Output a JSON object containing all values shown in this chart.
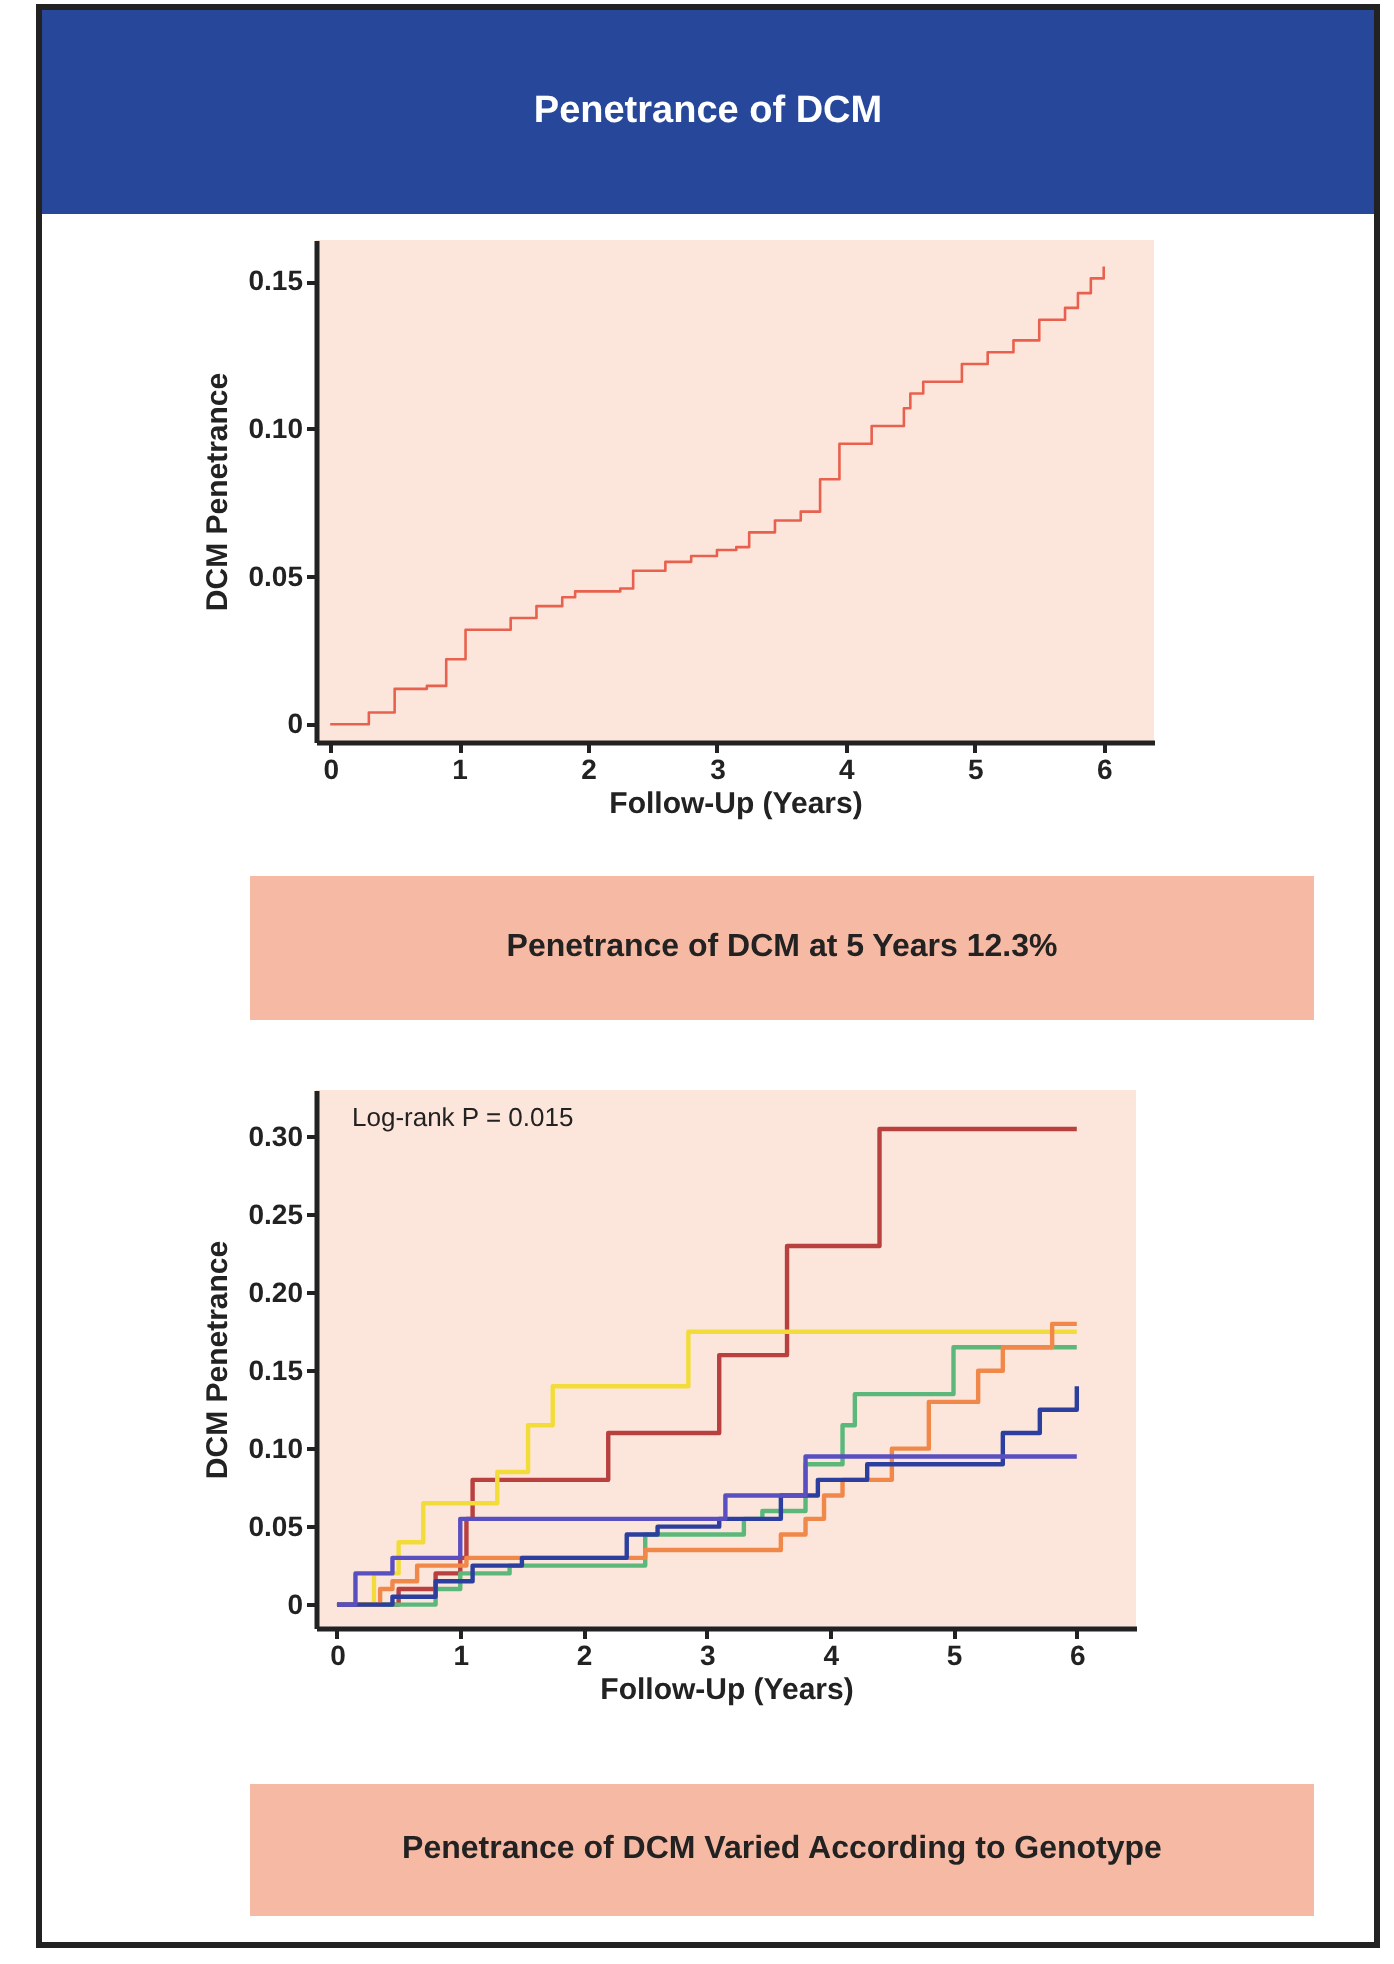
{
  "chart_data": [
    {
      "type": "step",
      "title": "Penetrance of DCM",
      "xlabel": "Follow-Up (Years)",
      "ylabel": "DCM Penetrance",
      "annotations": [
        "Penetrance of DCM at 5 Years 12.3%"
      ],
      "xlim": [
        -0.11,
        6.39
      ],
      "ylim": [
        -0.006,
        0.164
      ],
      "xticks": [
        0,
        1,
        2,
        3,
        4,
        5,
        6
      ],
      "yticks": [
        0,
        0.05,
        {
          "value": 0.1,
          "label": "0.10"
        },
        0.15
      ],
      "series": [
        {
          "color": "#e8614e",
          "x": [
            0,
            0.1,
            0.3,
            0.5,
            0.75,
            0.9,
            1.05,
            1.4,
            1.6,
            1.8,
            1.9,
            2.25,
            2.35,
            2.6,
            2.8,
            3.0,
            3.15,
            3.25,
            3.45,
            3.65,
            3.8,
            3.95,
            4.2,
            4.45,
            4.5,
            4.6,
            4.85,
            4.9,
            5.1,
            5.3,
            5.5,
            5.7,
            5.8,
            5.9,
            6.0
          ],
          "values": [
            0,
            0,
            0.004,
            0.012,
            0.013,
            0.022,
            0.032,
            0.036,
            0.04,
            0.043,
            0.045,
            0.046,
            0.052,
            0.055,
            0.057,
            0.059,
            0.06,
            0.065,
            0.069,
            0.072,
            0.083,
            0.095,
            0.101,
            0.107,
            0.112,
            0.116,
            0.116,
            0.122,
            0.126,
            0.13,
            0.137,
            0.141,
            0.146,
            0.151,
            0.155
          ]
        }
      ]
    },
    {
      "type": "step",
      "xlabel": "Follow-Up (Years)",
      "ylabel": "DCM Penetrance",
      "annotations": [
        "Log-rank P = 0.015",
        "Penetrance of DCM Varied According to Genotype"
      ],
      "xlim": [
        -0.17,
        6.48
      ],
      "ylim": [
        -0.015,
        0.33
      ],
      "xticks": [
        0,
        1,
        2,
        3,
        4,
        5,
        6
      ],
      "yticks": [
        0,
        0.05,
        {
          "value": 0.1,
          "label": "0.10"
        },
        0.15,
        {
          "value": 0.2,
          "label": "0.20"
        },
        0.25,
        {
          "value": 0.3,
          "label": "0.30"
        }
      ],
      "series": [
        {
          "color": "#b8403f",
          "x": [
            0,
            0.5,
            0.8,
            1.0,
            1.05,
            1.1,
            2.2,
            3.1,
            3.65,
            4.4,
            6.0
          ],
          "values": [
            0,
            0.01,
            0.02,
            0.03,
            0.055,
            0.08,
            0.11,
            0.16,
            0.23,
            0.305,
            0.305
          ]
        },
        {
          "color": "#f2dc3a",
          "x": [
            0,
            0.3,
            0.5,
            0.7,
            1.3,
            1.55,
            1.75,
            2.85,
            6.0
          ],
          "values": [
            0,
            0.02,
            0.04,
            0.065,
            0.085,
            0.115,
            0.14,
            0.175,
            0.175
          ]
        },
        {
          "color": "#5cb87a",
          "x": [
            0,
            0.8,
            1.0,
            1.4,
            2.5,
            3.3,
            3.45,
            3.8,
            4.1,
            4.2,
            5.0,
            6.0
          ],
          "values": [
            0,
            0.01,
            0.02,
            0.025,
            0.045,
            0.055,
            0.06,
            0.09,
            0.115,
            0.135,
            0.165,
            0.165
          ]
        },
        {
          "color": "#f0884a",
          "x": [
            0,
            0.35,
            0.45,
            0.65,
            1.05,
            2.5,
            3.6,
            3.8,
            3.95,
            4.1,
            4.5,
            4.8,
            5.2,
            5.4,
            5.8,
            6.0
          ],
          "values": [
            0,
            0.01,
            0.015,
            0.025,
            0.03,
            0.035,
            0.045,
            0.055,
            0.07,
            0.08,
            0.1,
            0.13,
            0.15,
            0.165,
            0.18,
            0.18
          ]
        },
        {
          "color": "#2c3e9e",
          "x": [
            0,
            0.45,
            0.8,
            1.1,
            1.5,
            2.35,
            2.6,
            3.1,
            3.6,
            3.9,
            4.3,
            5.4,
            5.7,
            6.0
          ],
          "values": [
            0,
            0.005,
            0.015,
            0.025,
            0.03,
            0.045,
            0.05,
            0.055,
            0.07,
            0.08,
            0.09,
            0.11,
            0.125,
            0.14
          ]
        },
        {
          "color": "#5a4fc0",
          "x": [
            0,
            0.15,
            0.45,
            1.0,
            3.15,
            3.8,
            6.0
          ],
          "values": [
            0,
            0.02,
            0.03,
            0.055,
            0.07,
            0.095,
            0.095
          ]
        }
      ]
    }
  ]
}
